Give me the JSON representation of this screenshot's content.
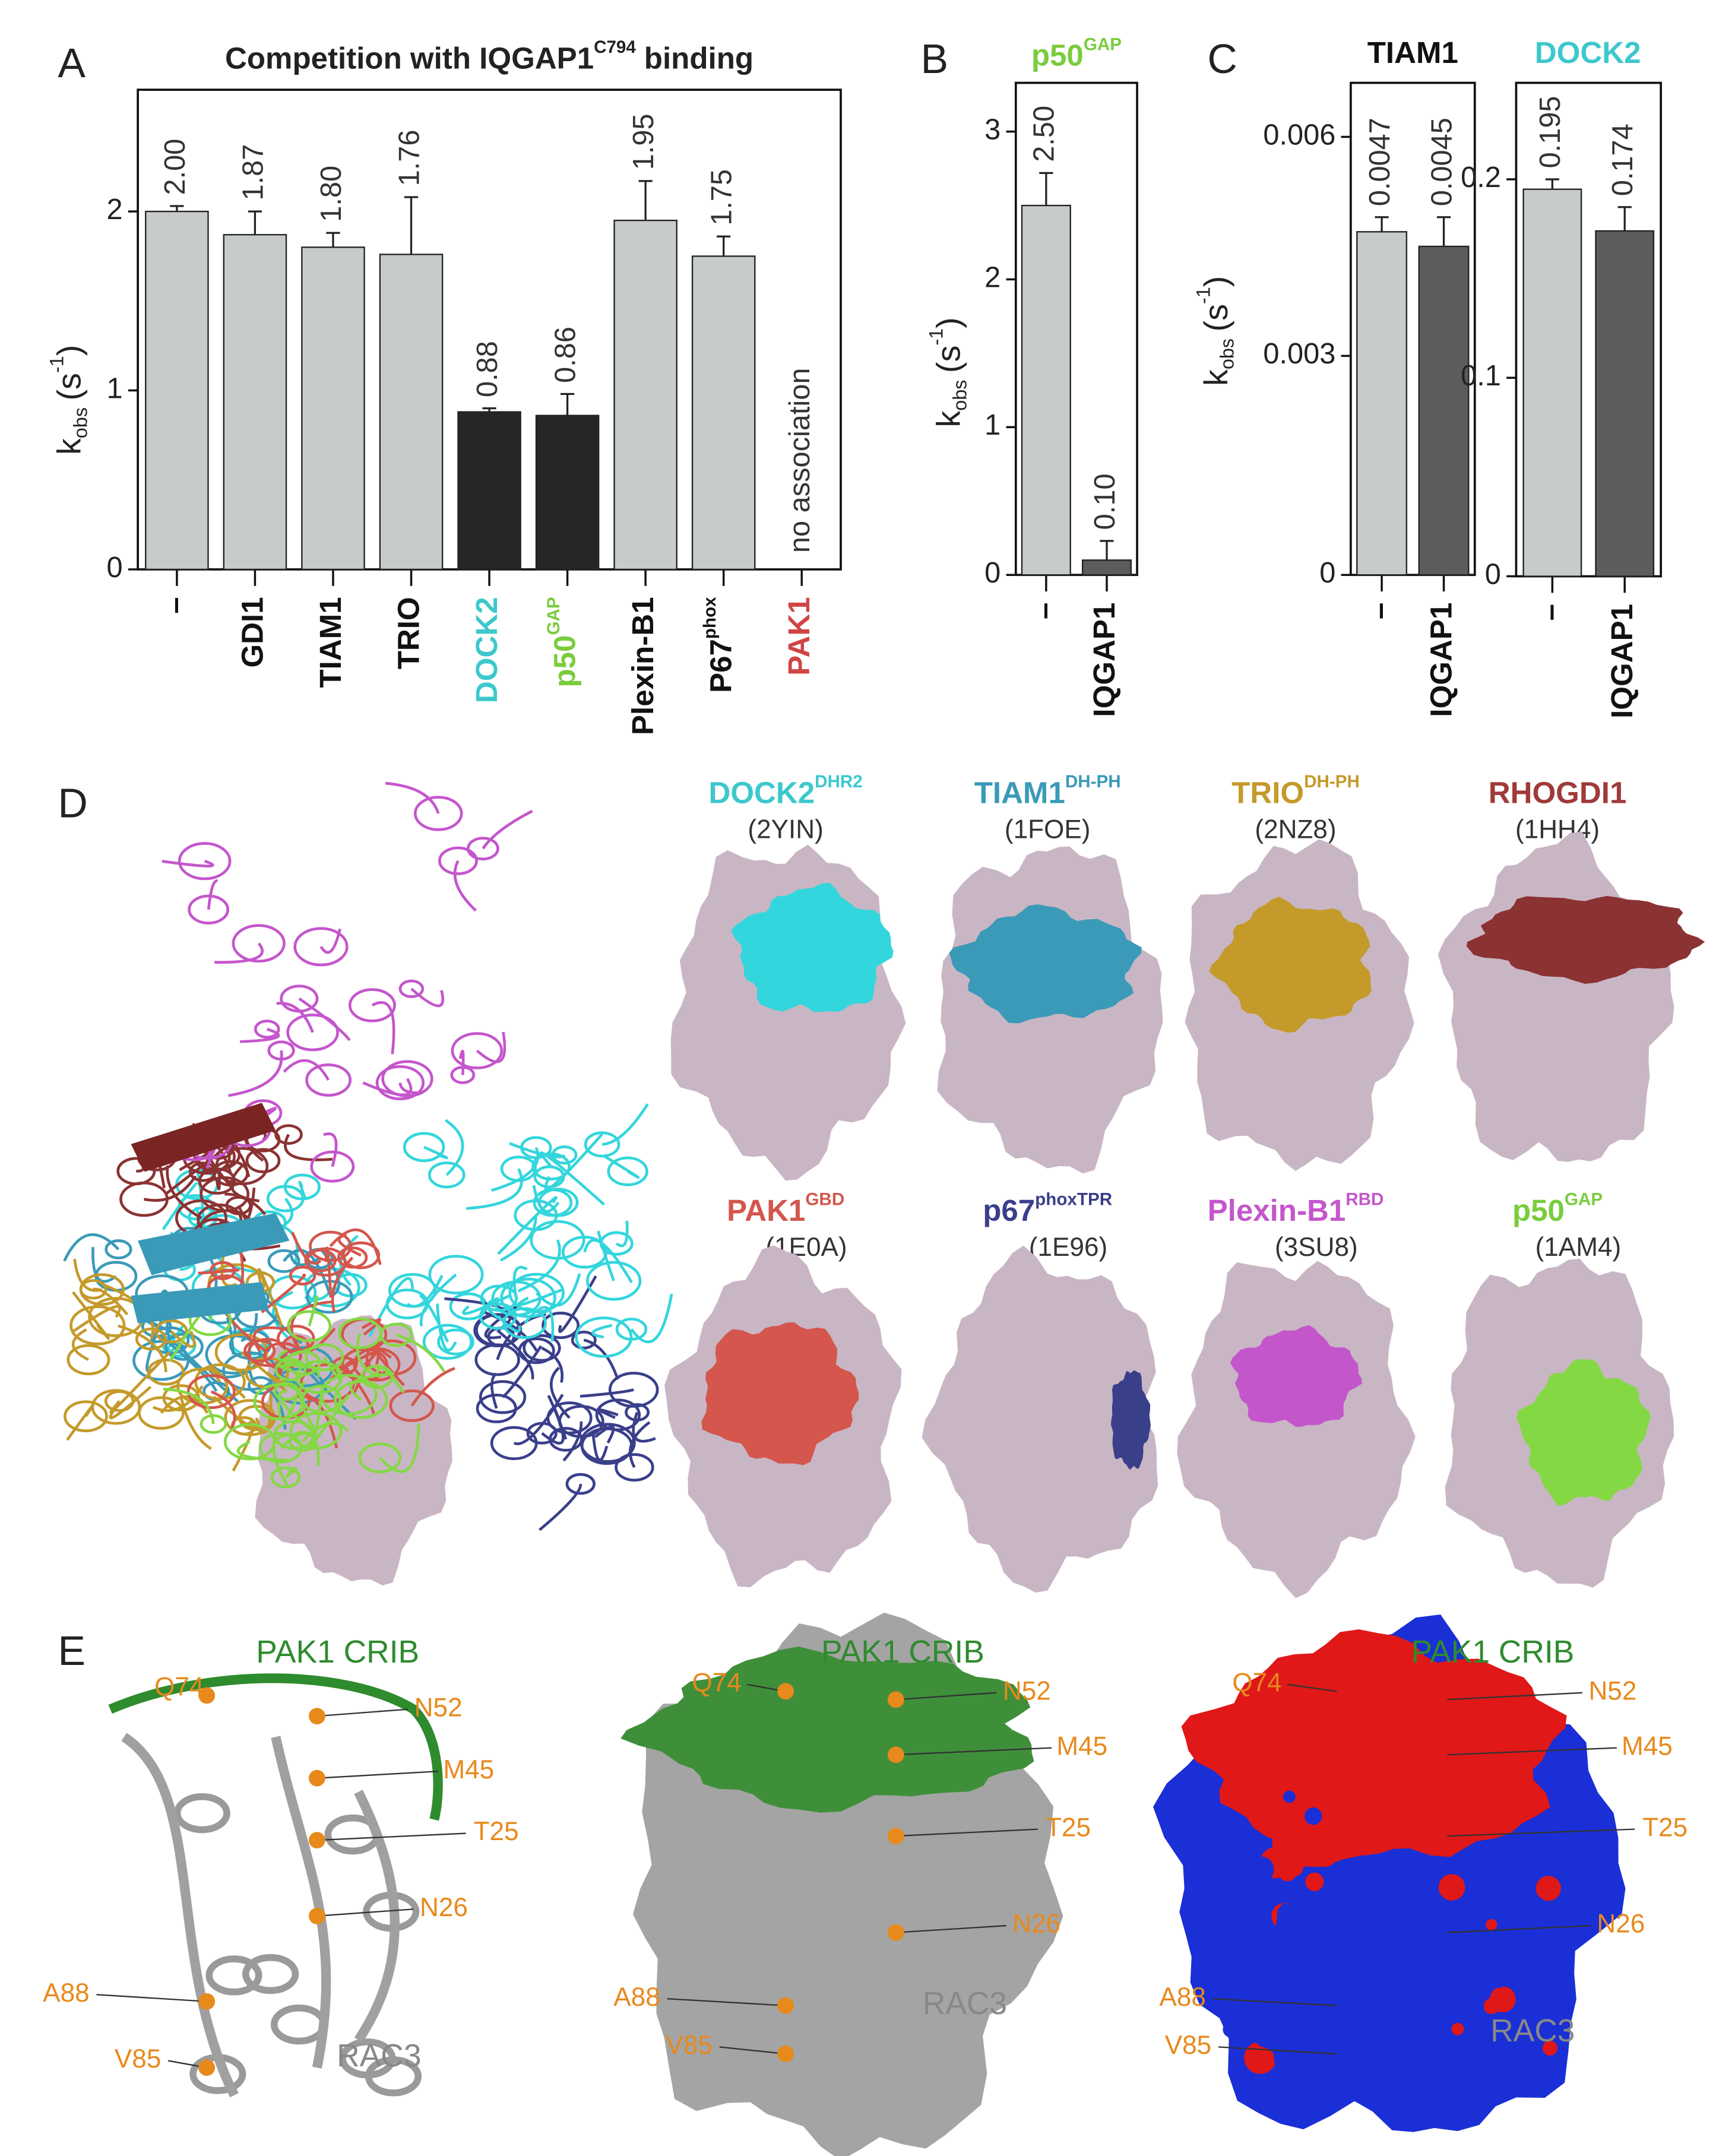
{
  "chart_data": [
    {
      "type": "bar",
      "title": "Competition with IQGAP1",
      "title_superscript": "C794",
      "title_end": "binding",
      "ylabel": {
        "base": "k",
        "sub": "obs",
        "unit": "(s",
        "sup": "-1",
        "end": ")"
      },
      "categories": [
        "–",
        "GDI1",
        "TIAM1",
        "TRIO",
        "DOCK2",
        "p50",
        "Plexin-B1",
        "P67",
        "PAK1"
      ],
      "category_superscripts": [
        null,
        null,
        null,
        null,
        null,
        "GAP",
        null,
        "phox",
        null
      ],
      "category_colors": [
        "#111111",
        "#111111",
        "#111111",
        "#111111",
        "#3cc8cc",
        "#7acc3c",
        "#111111",
        "#111111",
        "#d04444"
      ],
      "values": [
        2.0,
        1.87,
        1.8,
        1.76,
        0.88,
        0.86,
        1.95,
        1.75,
        null
      ],
      "value_labels": [
        "2.00",
        "1.87",
        "1.80",
        "1.76",
        "0.88",
        "0.86",
        "1.95",
        "1.75",
        null
      ],
      "errors": [
        0.03,
        0.13,
        0.08,
        0.32,
        0.02,
        0.12,
        0.22,
        0.11,
        null
      ],
      "colors": [
        "#c8cbcb",
        "#c8cbcb",
        "#c8cbcb",
        "#c8cbcb",
        "#262626",
        "#262626",
        "#c8cbcb",
        "#c8cbcb",
        "#c8cbcb"
      ],
      "annotation": "no association",
      "ylim": [
        0,
        2.68
      ],
      "yticks": [
        0,
        1,
        2
      ],
      "grid": false
    },
    {
      "type": "bar",
      "title": "p50",
      "title_superscript": "GAP",
      "title_color": "#7acc3c",
      "ylabel": {
        "base": "k",
        "sub": "obs",
        "unit": "(s",
        "sup": "-1",
        "end": ")"
      },
      "categories": [
        "–",
        "IQGAP1"
      ],
      "category_colors": [
        "#111111",
        "#111111"
      ],
      "values": [
        2.5,
        0.1
      ],
      "value_labels": [
        "2.50",
        "0.10"
      ],
      "errors": [
        0.22,
        0.13
      ],
      "colors": [
        "#c8cbcb",
        "#5c5c5c"
      ],
      "ylim": [
        0,
        3.33
      ],
      "yticks": [
        0,
        1,
        2,
        3
      ],
      "grid": false
    },
    {
      "type": "bar",
      "title": "TIAM1",
      "title_color": "#111111",
      "ylabel": {
        "base": "k",
        "sub": "obs",
        "unit": "(s",
        "sup": "-1",
        "end": ")"
      },
      "categories": [
        "–",
        "IQGAP1"
      ],
      "category_colors": [
        "#111111",
        "#111111"
      ],
      "values": [
        0.0047,
        0.0045
      ],
      "value_labels": [
        "0.0047",
        "0.0045"
      ],
      "errors": [
        0.0002,
        0.0004
      ],
      "colors": [
        "#c8cbcb",
        "#5c5c5c"
      ],
      "ylim": [
        0,
        0.00674
      ],
      "yticks": [
        0,
        0.003,
        0.006
      ],
      "grid": false
    },
    {
      "type": "bar",
      "title": "DOCK2",
      "title_color": "#3cc8cc",
      "categories": [
        "–",
        "IQGAP1"
      ],
      "category_colors": [
        "#111111",
        "#111111"
      ],
      "values": [
        0.195,
        0.174
      ],
      "value_labels": [
        "0.195",
        "0.174"
      ],
      "errors": [
        0.005,
        0.012
      ],
      "colors": [
        "#c8cbcb",
        "#5c5c5c"
      ],
      "ylim": [
        0,
        0.2486
      ],
      "yticks": [
        0,
        0.1,
        0.2
      ],
      "grid": false
    }
  ],
  "panel_labels": [
    "A",
    "B",
    "C",
    "D",
    "E"
  ],
  "structures": [
    {
      "name": "DOCK2",
      "sup": "DHR2",
      "pdb": "(2YIN)",
      "color": "#33d6dc",
      "name_color": "#3cc8cc"
    },
    {
      "name": "TIAM1",
      "sup": "DH-PH",
      "pdb": "(1FOE)",
      "color": "#3a9ab8",
      "name_color": "#3a9ab8"
    },
    {
      "name": "TRIO",
      "sup": "DH-PH",
      "pdb": "(2NZ8)",
      "color": "#c49a2a",
      "name_color": "#c49a2a"
    },
    {
      "name": "RHOGDI1",
      "sup": null,
      "pdb": "(1HH4)",
      "color": "#8b3232",
      "name_color": "#a03a3a"
    },
    {
      "name": "PAK1",
      "sup": "GBD",
      "pdb": "(1E0A)",
      "color": "#d4564c",
      "name_color": "#d4564c"
    },
    {
      "name": "p67",
      "sup": "phoxTPR",
      "pdb": "(1E96)",
      "color": "#3a3f8a",
      "name_color": "#3a3f8a"
    },
    {
      "name": "Plexin-B1",
      "sup": "RBD",
      "pdb": "(3SU8)",
      "color": "#c456cc",
      "name_color": "#c456cc"
    },
    {
      "name": "p50",
      "sup": "GAP",
      "pdb": "(1AM4)",
      "color": "#84d844",
      "name_color": "#7acc3c"
    }
  ],
  "rac3_views": {
    "title": "PAK1 CRIB",
    "residues": [
      "Q74",
      "N52",
      "M45",
      "T25",
      "N26",
      "A88",
      "V85"
    ],
    "protein": "RAC3"
  }
}
